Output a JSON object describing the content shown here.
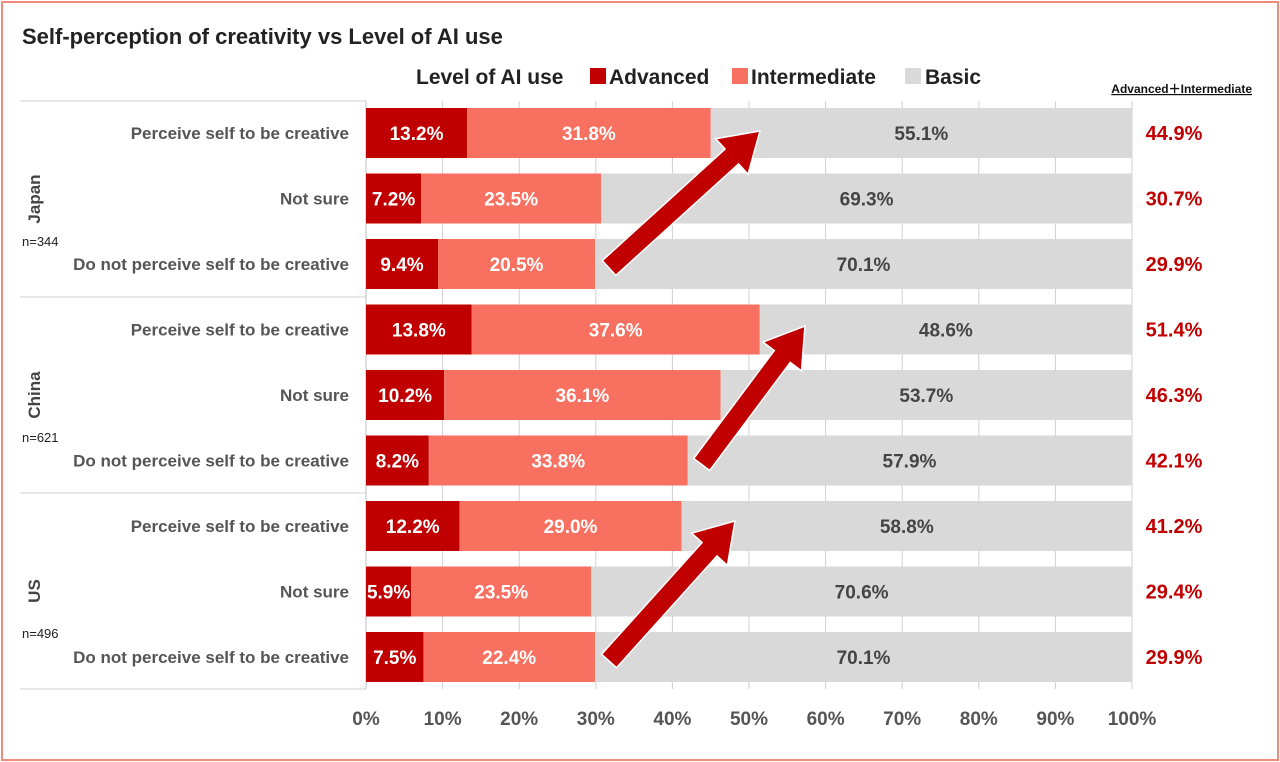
{
  "colors": {
    "advanced": "#c00000",
    "intermediate": "#f87060",
    "basic": "#d9d9d9",
    "arrow": "#c00000",
    "sum_text": "#c00000",
    "frame": "#f08a7c"
  },
  "chart_data": {
    "type": "bar",
    "orientation": "horizontal",
    "stacked": true,
    "title": "Self-perception of creativity vs Level of AI use",
    "legend_title": "Level of AI use",
    "legend_placement": "top",
    "sum_header": "Advanced＋Intermediate",
    "xlim": [
      0,
      100
    ],
    "x_ticks": [
      "0%",
      "10%",
      "20%",
      "30%",
      "40%",
      "50%",
      "60%",
      "70%",
      "80%",
      "90%",
      "100%"
    ],
    "series": [
      {
        "name": "Advanced",
        "color": "#c00000"
      },
      {
        "name": "Intermediate",
        "color": "#f87060"
      },
      {
        "name": "Basic",
        "color": "#d9d9d9"
      }
    ],
    "groups": [
      {
        "country": "Japan",
        "n": "n=344",
        "rows": [
          {
            "label": "Perceive self to be creative",
            "advanced": 13.2,
            "intermediate": 31.8,
            "basic": 55.1,
            "advanced_label": "13.2%",
            "intermediate_label": "31.8%",
            "basic_label": "55.1%",
            "sum_label": "44.9%"
          },
          {
            "label": "Not sure",
            "advanced": 7.2,
            "intermediate": 23.5,
            "basic": 69.3,
            "advanced_label": "7.2%",
            "intermediate_label": "23.5%",
            "basic_label": "69.3%",
            "sum_label": "30.7%"
          },
          {
            "label": "Do not perceive self to be creative",
            "advanced": 9.4,
            "intermediate": 20.5,
            "basic": 70.1,
            "advanced_label": "9.4%",
            "intermediate_label": "20.5%",
            "basic_label": "70.1%",
            "sum_label": "29.9%"
          }
        ]
      },
      {
        "country": "China",
        "n": "n=621",
        "rows": [
          {
            "label": "Perceive self to be creative",
            "advanced": 13.8,
            "intermediate": 37.6,
            "basic": 48.6,
            "advanced_label": "13.8%",
            "intermediate_label": "37.6%",
            "basic_label": "48.6%",
            "sum_label": "51.4%"
          },
          {
            "label": "Not sure",
            "advanced": 10.2,
            "intermediate": 36.1,
            "basic": 53.7,
            "advanced_label": "10.2%",
            "intermediate_label": "36.1%",
            "basic_label": "53.7%",
            "sum_label": "46.3%"
          },
          {
            "label": "Do not perceive self to be creative",
            "advanced": 8.2,
            "intermediate": 33.8,
            "basic": 57.9,
            "advanced_label": "8.2%",
            "intermediate_label": "33.8%",
            "basic_label": "57.9%",
            "sum_label": "42.1%"
          }
        ]
      },
      {
        "country": "US",
        "n": "n=496",
        "rows": [
          {
            "label": "Perceive self to be creative",
            "advanced": 12.2,
            "intermediate": 29.0,
            "basic": 58.8,
            "advanced_label": "12.2%",
            "intermediate_label": "29.0%",
            "basic_label": "58.8%",
            "sum_label": "41.2%"
          },
          {
            "label": "Not sure",
            "advanced": 5.9,
            "intermediate": 23.5,
            "basic": 70.6,
            "advanced_label": "5.9%",
            "intermediate_label": "23.5%",
            "basic_label": "70.6%",
            "sum_label": "29.4%"
          },
          {
            "label": "Do not perceive self to be creative",
            "advanced": 7.5,
            "intermediate": 22.4,
            "basic": 70.1,
            "advanced_label": "7.5%",
            "intermediate_label": "22.4%",
            "basic_label": "70.1%",
            "sum_label": "29.9%"
          }
        ]
      }
    ]
  }
}
